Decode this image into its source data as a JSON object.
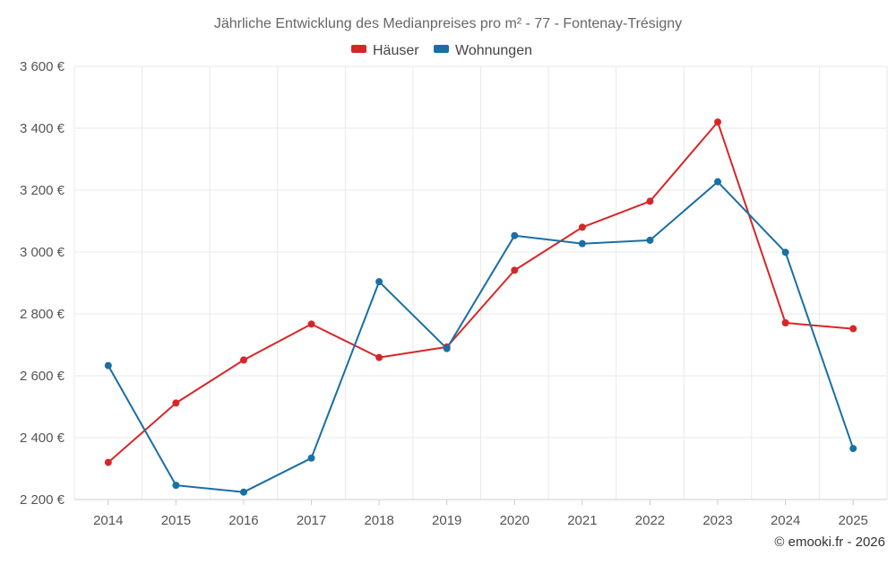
{
  "chart_data": {
    "type": "line",
    "title": "Jährliche Entwicklung des Medianpreises pro m² - 77 - Fontenay-Trésigny",
    "categories": [
      "2014",
      "2015",
      "2016",
      "2017",
      "2018",
      "2019",
      "2020",
      "2021",
      "2022",
      "2023",
      "2024",
      "2025"
    ],
    "series": [
      {
        "name": "Häuser",
        "color": "#d62728",
        "values": [
          2320,
          2512,
          2651,
          2767,
          2659,
          2693,
          2941,
          3080,
          3164,
          3420,
          2771,
          2752
        ]
      },
      {
        "name": "Wohnungen",
        "color": "#1a6fa3",
        "values": [
          2633,
          2246,
          2224,
          2334,
          2904,
          2688,
          3053,
          3027,
          3038,
          3227,
          2999,
          2365
        ]
      }
    ],
    "ylim": [
      2200,
      3600
    ],
    "yticks": [
      2200,
      2400,
      2600,
      2800,
      3000,
      3200,
      3400,
      3600
    ],
    "ytick_labels": [
      "2 200 €",
      "2 400 €",
      "2 600 €",
      "2 800 €",
      "3 000 €",
      "3 200 €",
      "3 400 €",
      "3 600 €"
    ],
    "xlabel": "",
    "ylabel": "",
    "grid": true,
    "legend_position": "top-center",
    "credit": "© emooki.fr - 2026"
  }
}
